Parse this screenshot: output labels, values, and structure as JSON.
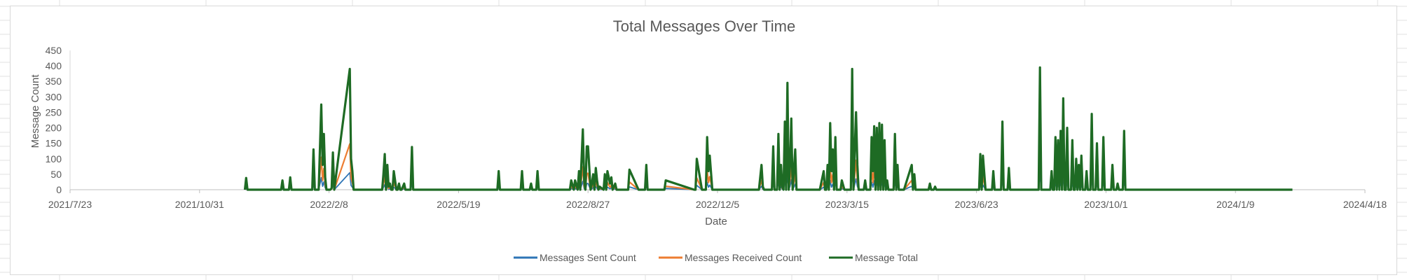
{
  "chart_data": {
    "type": "line",
    "title": "Total Messages Over Time",
    "xlabel": "Date",
    "ylabel": "Message Count",
    "ylim": [
      0,
      450
    ],
    "yticks": [
      0,
      50,
      100,
      150,
      200,
      250,
      300,
      350,
      400,
      450
    ],
    "x_tick_labels": [
      "2021/7/23",
      "2021/10/31",
      "2022/2/8",
      "2022/5/19",
      "2022/8/27",
      "2022/12/5",
      "2023/3/15",
      "2023/6/23",
      "2023/10/1",
      "2024/1/9",
      "2024/4/18"
    ],
    "xlim": [
      "2021/7/23",
      "2024/4/18"
    ],
    "grid": false,
    "legend_position": "bottom",
    "series": [
      {
        "name": "Messages Sent Count",
        "color": "#2e75b6"
      },
      {
        "name": "Messages Received Count",
        "color": "#ed7d31"
      },
      {
        "name": "Message Total",
        "color": "#1e6b24"
      }
    ],
    "x": [
      "2021/12/5",
      "2021/12/6",
      "2021/12/7",
      "2021/12/8",
      "2022/1/2",
      "2022/1/3",
      "2022/1/4",
      "2022/1/5",
      "2022/1/8",
      "2022/1/9",
      "2022/1/10",
      "2022/1/11",
      "2022/1/12",
      "2022/1/24",
      "2022/1/25",
      "2022/1/26",
      "2022/1/27",
      "2022/1/28",
      "2022/1/29",
      "2022/1/30",
      "2022/1/31",
      "2022/2/2",
      "2022/2/3",
      "2022/2/4",
      "2022/2/5",
      "2022/2/6",
      "2022/2/7",
      "2022/2/8",
      "2022/2/9",
      "2022/2/10",
      "2022/2/11",
      "2022/2/12",
      "2022/2/24",
      "2022/2/25",
      "2022/2/26",
      "2022/2/27",
      "2022/2/28",
      "2022/3/1",
      "2022/3/2",
      "2022/3/3",
      "2022/3/4",
      "2022/3/5",
      "2022/3/21",
      "2022/3/22",
      "2022/3/23",
      "2022/3/24",
      "2022/3/25",
      "2022/3/26",
      "2022/3/27",
      "2022/3/28",
      "2022/3/29",
      "2022/3/30",
      "2022/4/1",
      "2022/4/2",
      "2022/4/3",
      "2022/4/4",
      "2022/4/5",
      "2022/4/7",
      "2022/4/8",
      "2022/4/9",
      "2022/4/12",
      "2022/4/13",
      "2022/4/14",
      "2022/4/22",
      "2022/4/23",
      "2022/4/24",
      "2022/5/4",
      "2022/5/5",
      "2022/5/6",
      "2022/6/18",
      "2022/6/19",
      "2022/6/20",
      "2022/7/6",
      "2022/7/7",
      "2022/7/8",
      "2022/7/13",
      "2022/7/14",
      "2022/7/15",
      "2022/7/18",
      "2022/7/19",
      "2022/7/20",
      "2022/8/13",
      "2022/8/14",
      "2022/8/16",
      "2022/8/17",
      "2022/8/19",
      "2022/8/20",
      "2022/8/21",
      "2022/8/23",
      "2022/8/24",
      "2022/8/25",
      "2022/8/26",
      "2022/8/27",
      "2022/8/29",
      "2022/8/30",
      "2022/8/31",
      "2022/9/1",
      "2022/9/2",
      "2022/9/3",
      "2022/9/4",
      "2022/9/5",
      "2022/9/8",
      "2022/9/9",
      "2022/9/10",
      "2022/9/11",
      "2022/9/13",
      "2022/9/14",
      "2022/9/15",
      "2022/9/17",
      "2022/9/18",
      "2022/9/19",
      "2022/9/26",
      "2022/9/27",
      "2022/9/28",
      "2022/10/5",
      "2022/10/6",
      "2022/10/7",
      "2022/10/9",
      "2022/10/10",
      "2022/10/11",
      "2022/10/12",
      "2022/10/13",
      "2022/10/14",
      "2022/10/24",
      "2022/10/25",
      "2022/10/26",
      "2022/11/17",
      "2022/11/18",
      "2022/11/19",
      "2022/11/23",
      "2022/11/24",
      "2022/11/25",
      "2022/11/26",
      "2022/11/27",
      "2022/11/28",
      "2022/11/29",
      "2022/12/1",
      "2022/12/2",
      "2022/12/3",
      "2022/12/4",
      "2022/12/5",
      "2022/12/6",
      "2023/1/4",
      "2023/1/5",
      "2023/1/6",
      "2023/1/8",
      "2023/1/9",
      "2023/1/10",
      "2023/1/16",
      "2023/1/17",
      "2023/1/18",
      "2023/1/20",
      "2023/1/21",
      "2023/1/22",
      "2023/1/23",
      "2023/1/24",
      "2023/1/25",
      "2023/1/26",
      "2023/1/27",
      "2023/1/28",
      "2023/1/29",
      "2023/1/30",
      "2023/1/31",
      "2023/2/1",
      "2023/2/2",
      "2023/2/3",
      "2023/2/4",
      "2023/2/5",
      "2023/2/6",
      "2023/2/7",
      "2023/2/8",
      "2023/2/9",
      "2023/2/20",
      "2023/2/21",
      "2023/2/22",
      "2023/2/25",
      "2023/2/26",
      "2023/2/27",
      "2023/2/28",
      "2023/3/1",
      "2023/3/2",
      "2023/3/3",
      "2023/3/4",
      "2023/3/5",
      "2023/3/6",
      "2023/3/7",
      "2023/3/8",
      "2023/3/9",
      "2023/3/10",
      "2023/3/11",
      "2023/3/13",
      "2023/3/14",
      "2023/3/15",
      "2023/3/16",
      "2023/3/17",
      "2023/3/18",
      "2023/3/19",
      "2023/3/20",
      "2023/3/22",
      "2023/3/23",
      "2023/3/24",
      "2023/3/27",
      "2023/3/28",
      "2023/3/29",
      "2023/3/30",
      "2023/3/31",
      "2023/4/1",
      "2023/4/2",
      "2023/4/3",
      "2023/4/4",
      "2023/4/5",
      "2023/4/6",
      "2023/4/7",
      "2023/4/8",
      "2023/4/9",
      "2023/4/10",
      "2023/4/11",
      "2023/4/12",
      "2023/4/13",
      "2023/4/14",
      "2023/4/15",
      "2023/4/16",
      "2023/4/17",
      "2023/4/20",
      "2023/4/21",
      "2023/4/22",
      "2023/4/23",
      "2023/4/24",
      "2023/4/25",
      "2023/4/26",
      "2023/4/27",
      "2023/4/28",
      "2023/5/4",
      "2023/5/5",
      "2023/5/6",
      "2023/5/7",
      "2023/5/8",
      "2023/5/9",
      "2023/5/14",
      "2023/5/15",
      "2023/5/16",
      "2023/5/17",
      "2023/5/18",
      "2023/5/19",
      "2023/5/20",
      "2023/5/21",
      "2023/5/22",
      "2023/5/23",
      "2023/5/24",
      "2023/5/25",
      "2023/5/26",
      "2023/5/27",
      "2023/5/28",
      "2023/5/29",
      "2023/5/30",
      "2023/6/8",
      "2023/6/9",
      "2023/6/10",
      "2023/6/11",
      "2023/6/12",
      "2023/6/13",
      "2023/6/14",
      "2023/6/15",
      "2023/6/16",
      "2023/6/17",
      "2023/6/18",
      "2023/6/19",
      "2023/6/20",
      "2023/6/21",
      "2023/6/22",
      "2023/6/23",
      "2023/6/24",
      "2023/6/25",
      "2023/6/26",
      "2023/6/27",
      "2023/6/28",
      "2023/6/30",
      "2023/7/1",
      "2023/7/2",
      "2023/7/3",
      "2023/7/4",
      "2023/7/5",
      "2023/7/6",
      "2023/7/7",
      "2023/7/8",
      "2023/7/10",
      "2023/7/11",
      "2023/7/12",
      "2023/7/13",
      "2023/7/14",
      "2023/7/15",
      "2023/7/17",
      "2023/7/18",
      "2023/7/19",
      "2023/7/20",
      "2023/7/21",
      "2023/7/22",
      "2023/7/23",
      "2023/7/24",
      "2023/7/25",
      "2023/7/26",
      "2023/7/27",
      "2023/7/28",
      "2023/7/29",
      "2023/7/30",
      "2023/7/31",
      "2023/8/1",
      "2023/8/2",
      "2023/8/3",
      "2023/8/4",
      "2023/8/5",
      "2023/8/6",
      "2023/8/7",
      "2023/8/8",
      "2023/8/9",
      "2023/8/10",
      "2023/8/11",
      "2023/8/12",
      "2023/8/13",
      "2023/8/14",
      "2023/8/15",
      "2023/8/16",
      "2023/8/17",
      "2023/8/18",
      "2023/8/19",
      "2023/8/20",
      "2023/8/21",
      "2023/8/22",
      "2023/8/23",
      "2023/8/24",
      "2023/8/25",
      "2023/8/26",
      "2023/8/27",
      "2023/8/28",
      "2023/8/29",
      "2023/8/30",
      "2023/8/31",
      "2023/9/1",
      "2023/9/2",
      "2023/9/3",
      "2023/9/4",
      "2023/9/5",
      "2023/9/6",
      "2023/9/7",
      "2023/9/8",
      "2023/9/9",
      "2023/9/10",
      "2023/9/11",
      "2023/9/12",
      "2023/9/13",
      "2023/9/14",
      "2023/9/15",
      "2023/9/16",
      "2023/9/17",
      "2023/9/18",
      "2023/9/19",
      "2023/9/20",
      "2023/9/21",
      "2023/9/22",
      "2023/9/23",
      "2023/9/24",
      "2023/9/25",
      "2023/9/26",
      "2023/9/27",
      "2023/9/28",
      "2023/9/29",
      "2023/9/30",
      "2023/10/1",
      "2023/10/2",
      "2023/10/3",
      "2023/10/4",
      "2023/10/5",
      "2023/10/6",
      "2023/10/7",
      "2023/10/8",
      "2023/10/9",
      "2023/10/10",
      "2023/10/11",
      "2023/10/12",
      "2023/10/13",
      "2023/10/14",
      "2023/10/15",
      "2023/10/16",
      "2023/10/17",
      "2023/10/18",
      "2023/10/19",
      "2023/10/20",
      "2023/10/21",
      "2023/10/22",
      "2023/10/23",
      "2023/10/24",
      "2023/10/25",
      "2023/10/26",
      "2023/10/27",
      "2023/10/28",
      "2023/10/29",
      "2023/10/30",
      "2023/10/31",
      "2023/11/1",
      "2023/11/2",
      "2023/11/3",
      "2023/11/4",
      "2023/11/5",
      "2023/11/6",
      "2023/11/7",
      "2023/11/8",
      "2023/11/9",
      "2023/11/10",
      "2023/11/11",
      "2023/11/12",
      "2023/11/13",
      "2023/11/14",
      "2023/11/15",
      "2023/11/16",
      "2023/11/17",
      "2023/11/18",
      "2023/11/19",
      "2023/11/20",
      "2023/11/21",
      "2023/11/22",
      "2023/11/23",
      "2023/11/24",
      "2023/11/25",
      "2023/11/26",
      "2023/11/27",
      "2023/11/28",
      "2023/11/29",
      "2023/11/30",
      "2023/12/2",
      "2023/12/3",
      "2023/12/4",
      "2023/12/5",
      "2023/12/6",
      "2023/12/7",
      "2023/12/8",
      "2023/12/9",
      "2023/12/10",
      "2023/12/11",
      "2023/12/12",
      "2023/12/13",
      "2023/12/14",
      "2023/12/15",
      "2023/12/16",
      "2023/12/17",
      "2023/12/18",
      "2023/12/19",
      "2023/12/20",
      "2023/12/21",
      "2023/12/22",
      "2023/12/23",
      "2023/12/24",
      "2023/12/25",
      "2023/12/26",
      "2023/12/27",
      "2023/12/28",
      "2023/12/29",
      "2023/12/30",
      "2023/12/31",
      "2024/1/1",
      "2024/1/2",
      "2024/1/3",
      "2024/1/4",
      "2024/1/5",
      "2024/1/6",
      "2024/1/7",
      "2024/1/8",
      "2024/1/9",
      "2024/1/10",
      "2024/1/11",
      "2024/1/12",
      "2024/1/13",
      "2024/1/14",
      "2024/1/15",
      "2024/1/16",
      "2024/1/17",
      "2024/1/18",
      "2024/1/19",
      "2024/1/20",
      "2024/1/21",
      "2024/1/22",
      "2024/1/23",
      "2024/1/24",
      "2024/1/25",
      "2024/1/26",
      "2024/1/27",
      "2024/1/28",
      "2024/1/29",
      "2024/1/30",
      "2024/1/31",
      "2024/2/1",
      "2024/2/2",
      "2024/2/3",
      "2024/2/4",
      "2024/2/5",
      "2024/2/6",
      "2024/2/7",
      "2024/2/8",
      "2024/2/9",
      "2024/2/10",
      "2024/2/11",
      "2024/2/12",
      "2024/2/13",
      "2024/2/14",
      "2024/2/15",
      "2024/2/16",
      "2024/2/17",
      "2024/2/18",
      "2024/2/19",
      "2024/2/20",
      "2024/2/21",
      "2024/2/22"
    ],
    "total": [
      0,
      38,
      0,
      0,
      0,
      30,
      0,
      0,
      0,
      40,
      0,
      0,
      0,
      0,
      0,
      0,
      130,
      0,
      0,
      0,
      0,
      275,
      80,
      180,
      40,
      0,
      0,
      0,
      0,
      5,
      120,
      0,
      390,
      100,
      60,
      0,
      0,
      0,
      0,
      0,
      0,
      0,
      0,
      50,
      115,
      0,
      80,
      10,
      20,
      0,
      0,
      60,
      0,
      0,
      20,
      0,
      0,
      20,
      0,
      0,
      0,
      138,
      0,
      0,
      0,
      0,
      0,
      0,
      0,
      0,
      60,
      0,
      0,
      60,
      0,
      0,
      20,
      0,
      0,
      60,
      0,
      0,
      30,
      0,
      30,
      0,
      60,
      0,
      195,
      30,
      0,
      140,
      140,
      0,
      20,
      50,
      0,
      70,
      30,
      0,
      10,
      0,
      50,
      0,
      60,
      20,
      40,
      0,
      20,
      0,
      0,
      0,
      0,
      65,
      0,
      0,
      0,
      0,
      0,
      80,
      0,
      0,
      0,
      0,
      0,
      30,
      0,
      0,
      100,
      0,
      0,
      0,
      0,
      170,
      60,
      110,
      0,
      0,
      0,
      0,
      0,
      0,
      0,
      0,
      0,
      80,
      10,
      0,
      0,
      140,
      0,
      0,
      180,
      0,
      80,
      10,
      0,
      220,
      0,
      345,
      0,
      80,
      230,
      0,
      60,
      130,
      0,
      0,
      0,
      0,
      0,
      0,
      0,
      0,
      0,
      60,
      0,
      0,
      80,
      0,
      215,
      60,
      130,
      0,
      170,
      0,
      0,
      0,
      0,
      30,
      0,
      0,
      0,
      0,
      0,
      0,
      390,
      0,
      250,
      80,
      0,
      0,
      0,
      30,
      0,
      0,
      0,
      0,
      170,
      60,
      205,
      0,
      200,
      0,
      215,
      0,
      210,
      0,
      160,
      0,
      30,
      0,
      0,
      0,
      180,
      0,
      80,
      0,
      0,
      0,
      0,
      0,
      80,
      0,
      50,
      0,
      0,
      0,
      0,
      0,
      0,
      0,
      20,
      0,
      0,
      0,
      10,
      0,
      0,
      0,
      0,
      0,
      0,
      0,
      0,
      0,
      0,
      0,
      0,
      0,
      0,
      0,
      0,
      0,
      0,
      0,
      0,
      0,
      0,
      0,
      0,
      0,
      0,
      115,
      0,
      110,
      0,
      0,
      0,
      0,
      0,
      0,
      60,
      0,
      0,
      0,
      0,
      0,
      220,
      0,
      0,
      0,
      70,
      0,
      0,
      0,
      0,
      0,
      0,
      0,
      0,
      0,
      0,
      0,
      0,
      0,
      0,
      0,
      0,
      0,
      0,
      0,
      0,
      0,
      0,
      0,
      395,
      0,
      0,
      0,
      0,
      0,
      0,
      0,
      0,
      60,
      0,
      0,
      170,
      0,
      160,
      0,
      190,
      0,
      295,
      0,
      0,
      200,
      0,
      0,
      0,
      160,
      0,
      0,
      100,
      0,
      80,
      0,
      110,
      0,
      0,
      0,
      60,
      0,
      0,
      0,
      245,
      0,
      0,
      0,
      150,
      0,
      0,
      0,
      0,
      170,
      0,
      0,
      0,
      0,
      0,
      0,
      80,
      0,
      0,
      0,
      20,
      0,
      0,
      0,
      0,
      190,
      0,
      0,
      0,
      0,
      0,
      0,
      0,
      0,
      0,
      0,
      0,
      0,
      0,
      0,
      0,
      0,
      0,
      0,
      0,
      0,
      0,
      0,
      0,
      0,
      0,
      0,
      0,
      0,
      0,
      0,
      0,
      0,
      0,
      0,
      0,
      0,
      0,
      0,
      0,
      0,
      0,
      0,
      0,
      0,
      0,
      0,
      0,
      0,
      0,
      0,
      0,
      0,
      0,
      0,
      0,
      0,
      0,
      0,
      0,
      0,
      0,
      0,
      0,
      0,
      0,
      0,
      0,
      0,
      0,
      0,
      0,
      0,
      0,
      0,
      0,
      0,
      0,
      0,
      0,
      0,
      0,
      0,
      0,
      0,
      0,
      0,
      0,
      0,
      0,
      0,
      0,
      0,
      0,
      0,
      0,
      0,
      0,
      0,
      0,
      0,
      0,
      0,
      0,
      0,
      0,
      0,
      0,
      0,
      0,
      0,
      0,
      0,
      0,
      0,
      0,
      0,
      0,
      0,
      0,
      0,
      0,
      0,
      0,
      0,
      0,
      0,
      0,
      0,
      0,
      0,
      0,
      0,
      0,
      0,
      0,
      0,
      0,
      0,
      0,
      0,
      0,
      0,
      0,
      0,
      0,
      0,
      0,
      0,
      0,
      0,
      0,
      0,
      0,
      0,
      0,
      0,
      0,
      0,
      0,
      0,
      0,
      0,
      0,
      0,
      0,
      0,
      0,
      0,
      0,
      0,
      0,
      0,
      0,
      0,
      0,
      0,
      0,
      0,
      0,
      0,
      0,
      0,
      0,
      0,
      0,
      0,
      0,
      0,
      0,
      0,
      0,
      0,
      0,
      0,
      0,
      0,
      0,
      0,
      0,
      0,
      0,
      0,
      0,
      0,
      0,
      0,
      0,
      0,
      0,
      0,
      0,
      0,
      0,
      0,
      0,
      0,
      0,
      0,
      0,
      0,
      0
    ]
  }
}
